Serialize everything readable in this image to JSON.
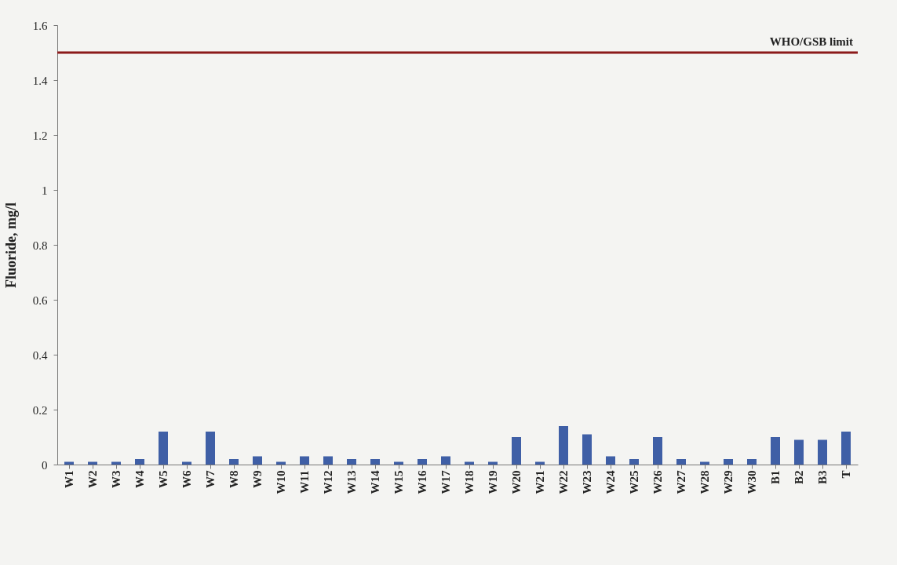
{
  "chart_data": {
    "type": "bar",
    "ylabel": "Fluoride, mg/l",
    "categories": [
      "W1",
      "W2",
      "W3",
      "W4",
      "W5",
      "W6",
      "W7",
      "W8",
      "W9",
      "W10",
      "W11",
      "W12",
      "W13",
      "W14",
      "W15",
      "W16",
      "W17",
      "W18",
      "W19",
      "W20",
      "W21",
      "W22",
      "W23",
      "W24",
      "W25",
      "W26",
      "W27",
      "W28",
      "W29",
      "W30",
      "B1",
      "B2",
      "B3",
      "T"
    ],
    "values": [
      0.01,
      0.01,
      0.01,
      0.02,
      0.12,
      0.01,
      0.12,
      0.02,
      0.03,
      0.01,
      0.03,
      0.03,
      0.02,
      0.02,
      0.01,
      0.02,
      0.03,
      0.01,
      0.01,
      0.1,
      0.01,
      0.14,
      0.11,
      0.03,
      0.02,
      0.1,
      0.02,
      0.01,
      0.02,
      0.02,
      0.1,
      0.09,
      0.09,
      0.12
    ],
    "color": "#3f5fa6",
    "ylim": [
      0,
      1.6
    ],
    "yticks": [
      0,
      0.2,
      0.4,
      0.6,
      0.8,
      1,
      1.2,
      1.4,
      1.6
    ],
    "grid": false,
    "ref_lines": [
      {
        "axis": "y",
        "value": 1.5,
        "label": "WHO/GSB limit",
        "color": "#8b1a1a"
      }
    ]
  }
}
